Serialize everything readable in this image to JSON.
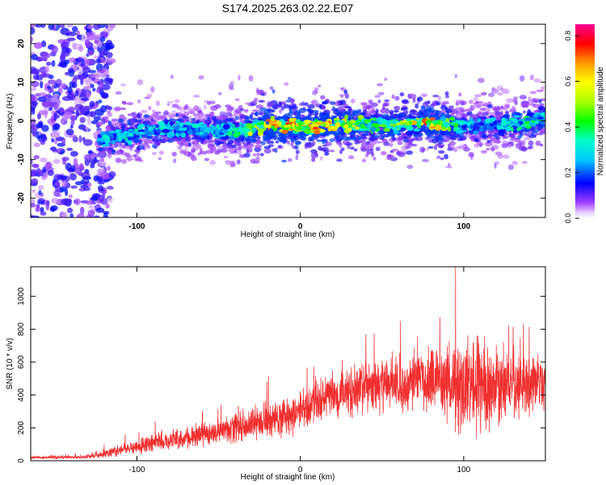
{
  "chart_data": [
    {
      "type": "heatmap",
      "title": "S174.2025.263.02.22.E07",
      "xlabel": "Height of straight line (km)",
      "ylabel": "Frequency (Hz)",
      "xlim": [
        -165,
        150
      ],
      "ylim": [
        -25,
        25
      ],
      "xticks": [
        -100,
        0,
        100
      ],
      "xtick_labels": [
        "-100",
        "0",
        "100"
      ],
      "yticks": [
        -20,
        -10,
        0,
        10,
        20
      ],
      "ytick_labels": [
        "-20",
        "-10",
        "0",
        "10",
        "20"
      ],
      "ridge": {
        "description": "band of high normalized amplitude near 0 Hz",
        "x": [
          -120,
          -100,
          -80,
          -60,
          -40,
          -20,
          0,
          20,
          40,
          60,
          80,
          100,
          120,
          140,
          150
        ],
        "freq": [
          -5,
          -3,
          -2,
          -2.5,
          -3,
          -1,
          -1.5,
          -1,
          -1,
          -1,
          -0.5,
          -1.5,
          -1,
          -0.5,
          1
        ],
        "peak_amplitude": [
          0.35,
          0.4,
          0.35,
          0.35,
          0.4,
          0.8,
          0.8,
          0.75,
          0.5,
          0.6,
          0.8,
          0.35,
          0.35,
          0.45,
          0.4
        ]
      },
      "noise_region": {
        "x_from": -165,
        "x_to": -115,
        "amplitude": 0.12
      }
    },
    {
      "type": "colorbar",
      "label": "Normalized spectral amplitude",
      "range": [
        0.0,
        0.85
      ],
      "ticks": [
        0.0,
        0.2,
        0.4,
        0.6,
        0.8
      ],
      "tick_labels": [
        "0.0",
        "0.2",
        "0.4",
        "0.6",
        "0.8"
      ]
    },
    {
      "type": "line",
      "xlabel": "Height of straight line (km)",
      "ylabel": "SNR (10 * v/v)",
      "xlim": [
        -165,
        150
      ],
      "ylim": [
        0,
        1180
      ],
      "xticks": [
        -100,
        0,
        100
      ],
      "xtick_labels": [
        "-100",
        "0",
        "100"
      ],
      "yticks": [
        0,
        200,
        400,
        600,
        800,
        1000
      ],
      "ytick_labels": [
        "0",
        "200",
        "400",
        "600",
        "800",
        "1000"
      ],
      "color": "#f03030",
      "series": [
        {
          "name": "SNR",
          "x": [
            -165,
            -150,
            -135,
            -125,
            -115,
            -105,
            -95,
            -85,
            -75,
            -65,
            -55,
            -45,
            -35,
            -25,
            -15,
            -5,
            5,
            15,
            25,
            35,
            45,
            55,
            65,
            75,
            85,
            95,
            105,
            115,
            125,
            135,
            145,
            150
          ],
          "mean": [
            18,
            20,
            22,
            30,
            55,
            75,
            100,
            115,
            130,
            150,
            170,
            190,
            215,
            235,
            260,
            280,
            320,
            380,
            410,
            430,
            450,
            470,
            480,
            500,
            480,
            470,
            470,
            450,
            460,
            470,
            470,
            450
          ],
          "spread": [
            10,
            10,
            10,
            15,
            30,
            40,
            50,
            55,
            60,
            70,
            80,
            90,
            100,
            105,
            110,
            120,
            130,
            150,
            160,
            160,
            160,
            170,
            170,
            180,
            190,
            250,
            320,
            260,
            220,
            200,
            190,
            180
          ]
        }
      ]
    }
  ]
}
